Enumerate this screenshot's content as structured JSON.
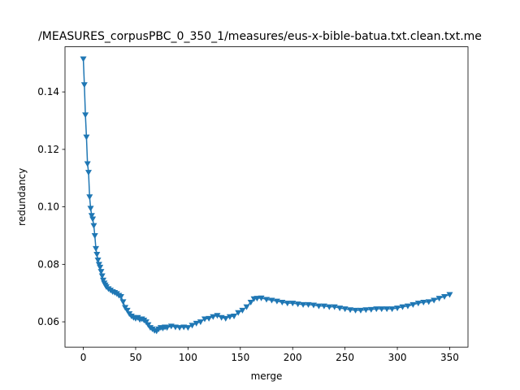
{
  "chart_data": {
    "type": "line",
    "title": "/MEASURES_corpusPBC_0_350_1/measures/eus-x-bible-batua.txt.clean.txt.me",
    "xlabel": "merge",
    "ylabel": "redundancy",
    "xlim": [
      -17.5,
      367.5
    ],
    "ylim": [
      0.0512,
      0.1557
    ],
    "xticks": [
      0,
      50,
      100,
      150,
      200,
      250,
      300,
      350
    ],
    "yticks": [
      0.06,
      0.08,
      0.1,
      0.12,
      0.14
    ],
    "ytick_labels": [
      "0.06",
      "0.08",
      "0.10",
      "0.12",
      "0.14"
    ],
    "grid": false,
    "marker": "triangle-down",
    "color": "#1f77b4",
    "series": [
      {
        "x": [
          0,
          1,
          2,
          3,
          4,
          5,
          6,
          7,
          8,
          9,
          10,
          11,
          12,
          13,
          14,
          15,
          16,
          17,
          18,
          19,
          20,
          21,
          22,
          24,
          26,
          28,
          30,
          32,
          34,
          36,
          38,
          40,
          42,
          44,
          46,
          48,
          50,
          52,
          54,
          56,
          58,
          60,
          62,
          64,
          66,
          68,
          70,
          72,
          74,
          76,
          78,
          80,
          84,
          88,
          92,
          96,
          100,
          104,
          108,
          112,
          116,
          120,
          124,
          128,
          132,
          136,
          140,
          144,
          148,
          152,
          156,
          160,
          163,
          166,
          170,
          175,
          180,
          185,
          190,
          195,
          200,
          205,
          210,
          215,
          220,
          225,
          230,
          235,
          240,
          245,
          250,
          255,
          260,
          265,
          270,
          275,
          280,
          285,
          290,
          295,
          300,
          305,
          310,
          315,
          320,
          325,
          330,
          335,
          340,
          345,
          350
        ],
        "y": [
          0.1515,
          0.1425,
          0.132,
          0.1243,
          0.115,
          0.112,
          0.1035,
          0.0995,
          0.097,
          0.0958,
          0.0935,
          0.09,
          0.0855,
          0.0835,
          0.0815,
          0.08,
          0.079,
          0.0775,
          0.076,
          0.0745,
          0.0735,
          0.0728,
          0.0722,
          0.0715,
          0.071,
          0.0705,
          0.0702,
          0.0698,
          0.0692,
          0.0688,
          0.067,
          0.065,
          0.064,
          0.0628,
          0.062,
          0.0615,
          0.0612,
          0.0615,
          0.0608,
          0.061,
          0.0606,
          0.06,
          0.059,
          0.058,
          0.0575,
          0.057,
          0.0568,
          0.0575,
          0.058,
          0.0578,
          0.0582,
          0.058,
          0.0585,
          0.0582,
          0.058,
          0.0582,
          0.058,
          0.0588,
          0.0595,
          0.06,
          0.061,
          0.0612,
          0.0618,
          0.0622,
          0.0615,
          0.0612,
          0.0618,
          0.062,
          0.0632,
          0.064,
          0.0652,
          0.0668,
          0.068,
          0.0682,
          0.0683,
          0.0678,
          0.0675,
          0.0672,
          0.0668,
          0.0665,
          0.0665,
          0.0662,
          0.066,
          0.066,
          0.0658,
          0.0655,
          0.0655,
          0.0652,
          0.0652,
          0.0648,
          0.0645,
          0.0642,
          0.064,
          0.064,
          0.0642,
          0.0643,
          0.0645,
          0.0645,
          0.0645,
          0.0645,
          0.0648,
          0.0652,
          0.0655,
          0.066,
          0.0665,
          0.0668,
          0.067,
          0.0675,
          0.0682,
          0.0688,
          0.0695
        ]
      }
    ]
  }
}
